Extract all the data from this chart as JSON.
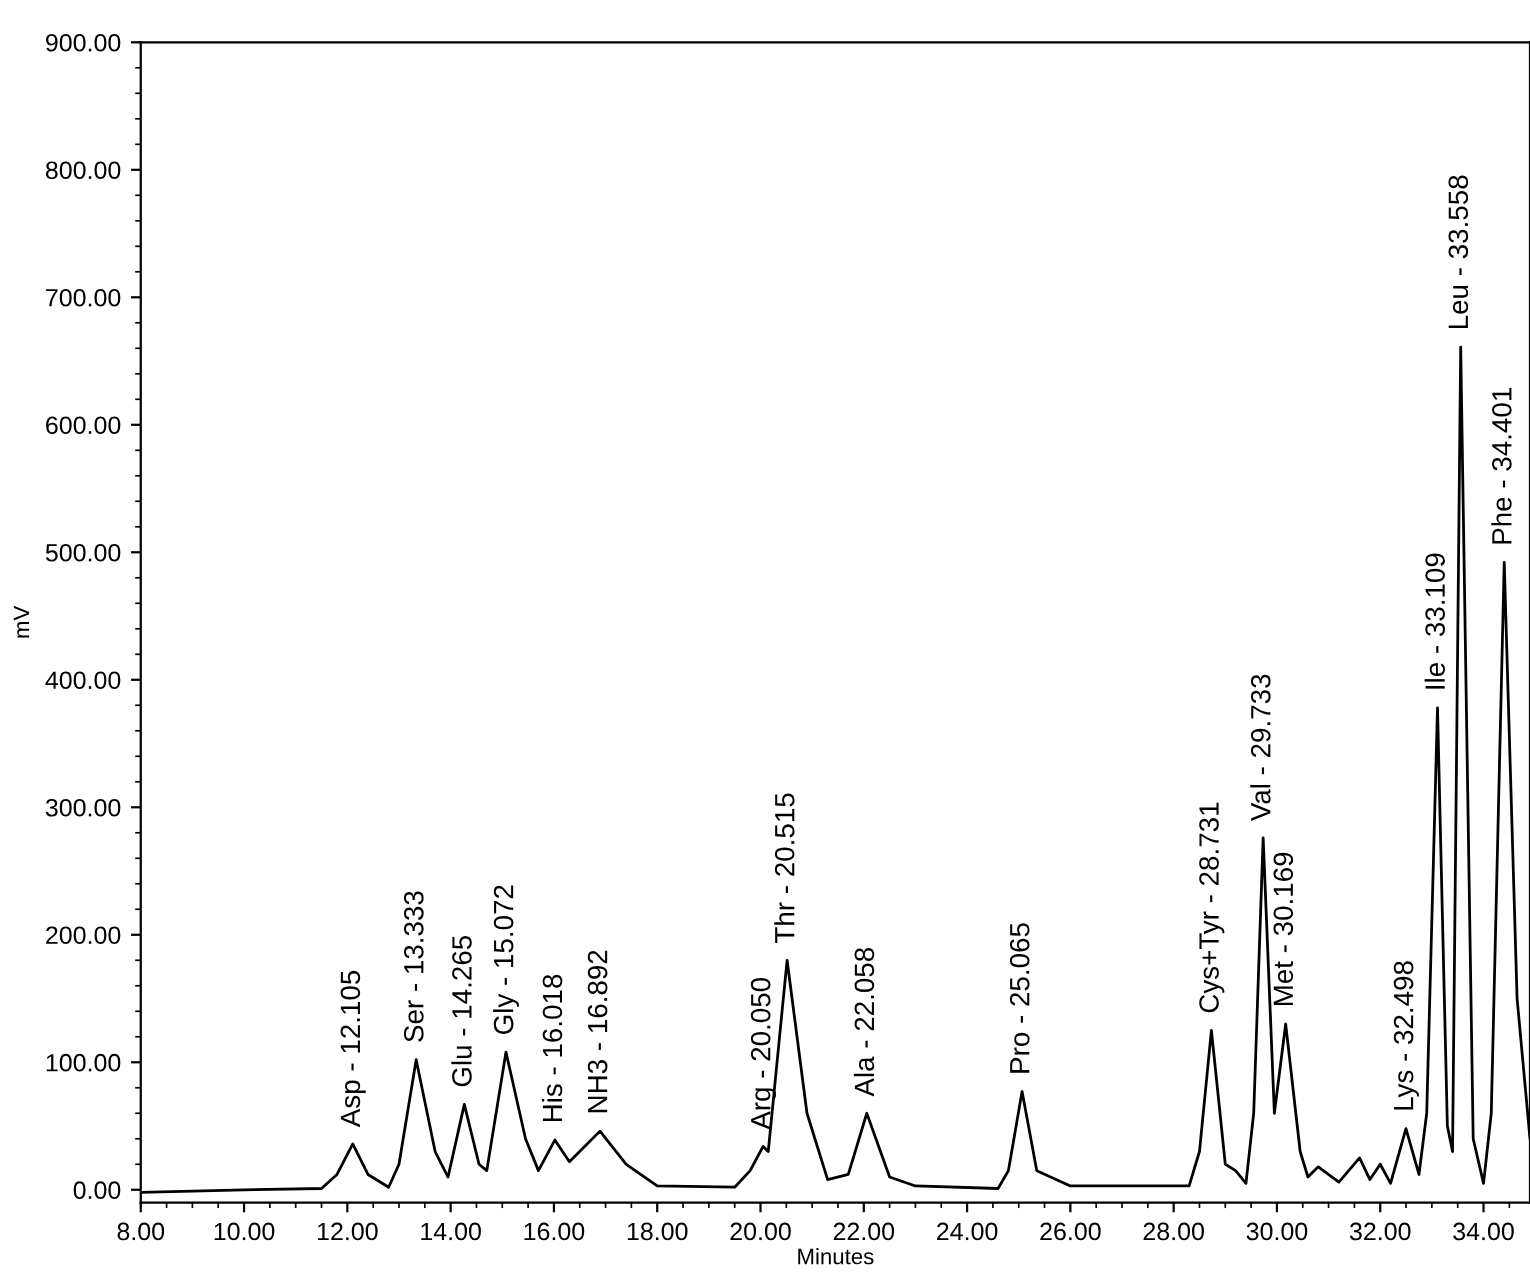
{
  "chart_data": {
    "type": "line",
    "xlabel": "Minutes",
    "ylabel": "mV",
    "x": [
      8,
      10,
      11.5,
      11.8,
      12.105,
      12.4,
      12.8,
      13.0,
      13.333,
      13.7,
      13.95,
      14.265,
      14.55,
      14.7,
      15.072,
      15.45,
      15.7,
      16.018,
      16.3,
      16.892,
      17.4,
      18.0,
      19.5,
      19.8,
      20.05,
      20.15,
      20.515,
      20.9,
      21.3,
      21.7,
      22.058,
      22.5,
      23.0,
      24.6,
      24.8,
      25.065,
      25.35,
      26.0,
      28.3,
      28.5,
      28.731,
      29.0,
      29.2,
      29.4,
      29.55,
      29.733,
      29.95,
      30.169,
      30.45,
      30.6,
      30.8,
      31.2,
      31.6,
      31.8,
      32.0,
      32.2,
      32.498,
      32.75,
      32.9,
      33.109,
      33.3,
      33.4,
      33.558,
      33.8,
      34.0,
      34.15,
      34.401,
      34.65,
      34.9
    ],
    "series": [
      {
        "color": "#000000",
        "values": [
          -2,
          0,
          1,
          12,
          36,
          12,
          2,
          20,
          102,
          30,
          10,
          67,
          20,
          15,
          108,
          40,
          15,
          39,
          22,
          46,
          20,
          3,
          2,
          15,
          34,
          30,
          180,
          60,
          8,
          12,
          60,
          10,
          3,
          1,
          15,
          77,
          15,
          3,
          3,
          30,
          125,
          20,
          15,
          5,
          60,
          276,
          60,
          130,
          30,
          10,
          18,
          6,
          25,
          8,
          20,
          5,
          48,
          12,
          60,
          378,
          50,
          30,
          661,
          40,
          5,
          60,
          492,
          150,
          40
        ]
      }
    ],
    "annotations": [
      {
        "text": "Asp - 12.105",
        "x": 12.105,
        "y": 36
      },
      {
        "text": "Ser - 13.333",
        "x": 13.333,
        "y": 102
      },
      {
        "text": "Glu - 14.265",
        "x": 14.265,
        "y": 67
      },
      {
        "text": "Gly - 15.072",
        "x": 15.072,
        "y": 108
      },
      {
        "text": "His - 16.018",
        "x": 16.018,
        "y": 39
      },
      {
        "text": "NH3 - 16.892",
        "x": 16.892,
        "y": 46
      },
      {
        "text": "Arg - 20.050",
        "x": 20.05,
        "y": 34
      },
      {
        "text": "Thr - 20.515",
        "x": 20.515,
        "y": 180
      },
      {
        "text": "Ala - 22.058",
        "x": 22.058,
        "y": 60
      },
      {
        "text": "Pro - 25.065",
        "x": 25.065,
        "y": 77
      },
      {
        "text": "Cys+Tyr - 28.731",
        "x": 28.731,
        "y": 125
      },
      {
        "text": "Val - 29.733",
        "x": 29.733,
        "y": 276
      },
      {
        "text": "Met - 30.169",
        "x": 30.169,
        "y": 130
      },
      {
        "text": "Lys - 32.498",
        "x": 32.498,
        "y": 48
      },
      {
        "text": "Ile - 33.109",
        "x": 33.109,
        "y": 378
      },
      {
        "text": "Leu - 33.558",
        "x": 33.558,
        "y": 661
      },
      {
        "text": "Phe - 34.401",
        "x": 34.401,
        "y": 492
      }
    ],
    "xlim": [
      8,
      34.9
    ],
    "ylim": [
      -10,
      900
    ],
    "xticks": [
      {
        "value": 8,
        "label": "8.00"
      },
      {
        "value": 10,
        "label": "10.00"
      },
      {
        "value": 12,
        "label": "12.00"
      },
      {
        "value": 14,
        "label": "14.00"
      },
      {
        "value": 16,
        "label": "16.00"
      },
      {
        "value": 18,
        "label": "18.00"
      },
      {
        "value": 20,
        "label": "20.00"
      },
      {
        "value": 22,
        "label": "22.00"
      },
      {
        "value": 24,
        "label": "24.00"
      },
      {
        "value": 26,
        "label": "26.00"
      },
      {
        "value": 28,
        "label": "28.00"
      },
      {
        "value": 30,
        "label": "30.00"
      },
      {
        "value": 32,
        "label": "32.00"
      },
      {
        "value": 34,
        "label": "34.00"
      }
    ],
    "yticks": [
      {
        "value": 0,
        "label": "0.00"
      },
      {
        "value": 100,
        "label": "100.00"
      },
      {
        "value": 200,
        "label": "200.00"
      },
      {
        "value": 300,
        "label": "300.00"
      },
      {
        "value": 400,
        "label": "400.00"
      },
      {
        "value": 500,
        "label": "500.00"
      },
      {
        "value": 600,
        "label": "600.00"
      },
      {
        "value": 700,
        "label": "700.00"
      },
      {
        "value": 800,
        "label": "800.00"
      },
      {
        "value": 900,
        "label": "900.00"
      }
    ],
    "grid": false,
    "legend": false,
    "marker": "none",
    "line_style": "solid"
  }
}
